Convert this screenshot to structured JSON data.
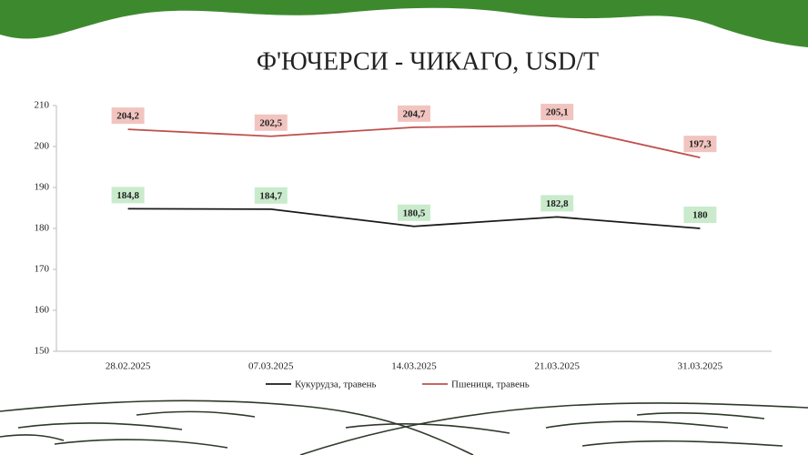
{
  "chart_data": {
    "type": "line",
    "title": "Ф'ЮЧЕРСИ - ЧИКАГО, USD/T",
    "categories": [
      "28.02.2025",
      "07.03.2025",
      "14.03.2025",
      "21.03.2025",
      "31.03.2025"
    ],
    "series": [
      {
        "name": "Кукурудза, травень",
        "color": "#1a1a1a",
        "label_color": "#c9ebcc",
        "values": [
          184.8,
          184.7,
          180.5,
          182.8,
          180
        ],
        "value_labels": [
          "184,8",
          "184,7",
          "180,5",
          "182,8",
          "180"
        ]
      },
      {
        "name": "Пшениця, травень",
        "color": "#c0504d",
        "label_color": "#f2c4c0",
        "values": [
          204.2,
          202.5,
          204.7,
          205.1,
          197.3
        ],
        "value_labels": [
          "204,2",
          "202,5",
          "204,7",
          "205,1",
          "197,3"
        ]
      }
    ],
    "ylim": [
      150,
      210
    ],
    "yticks": [
      150,
      160,
      170,
      180,
      190,
      200,
      210
    ],
    "grid": false,
    "legend": "bottom"
  }
}
